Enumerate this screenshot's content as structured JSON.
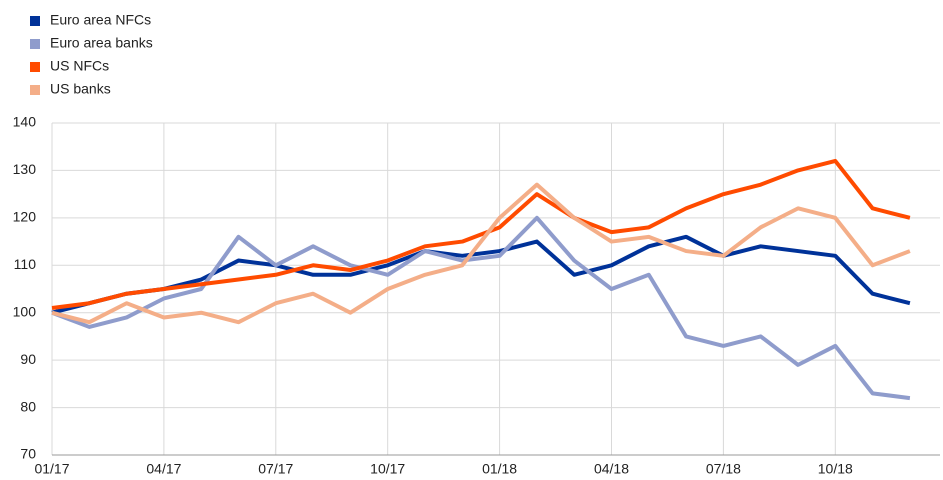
{
  "chart_data": {
    "type": "line",
    "categories": [
      "01/17",
      null,
      null,
      "04/17",
      null,
      null,
      "07/17",
      null,
      null,
      "10/17",
      null,
      null,
      "01/18",
      null,
      null,
      "04/18",
      null,
      null,
      "07/18",
      null,
      null,
      "10/18",
      null,
      null
    ],
    "series": [
      {
        "name": "Euro area NFCs",
        "color": "#003299",
        "values": [
          100,
          102,
          104,
          105,
          107,
          111,
          110,
          108,
          108,
          110,
          113,
          112,
          113,
          115,
          108,
          110,
          114,
          116,
          112,
          114,
          113,
          112,
          104,
          102
        ]
      },
      {
        "name": "Euro area banks",
        "color": "#8f9ccc",
        "values": [
          100,
          97,
          99,
          103,
          105,
          116,
          110,
          114,
          110,
          108,
          113,
          111,
          112,
          120,
          111,
          105,
          108,
          95,
          93,
          95,
          89,
          93,
          83,
          82
        ]
      },
      {
        "name": "US NFCs",
        "color": "#ff4b00",
        "values": [
          101,
          102,
          104,
          105,
          106,
          107,
          108,
          110,
          109,
          111,
          114,
          115,
          118,
          125,
          120,
          117,
          118,
          122,
          125,
          127,
          130,
          132,
          122,
          120
        ]
      },
      {
        "name": "US banks",
        "color": "#f4ae88",
        "values": [
          100,
          98,
          102,
          99,
          100,
          98,
          102,
          104,
          100,
          105,
          108,
          110,
          120,
          127,
          120,
          115,
          116,
          113,
          112,
          118,
          122,
          120,
          110,
          113
        ]
      }
    ],
    "ylim": [
      70,
      140
    ],
    "yticks": [
      70,
      80,
      90,
      100,
      110,
      120,
      130,
      140
    ],
    "grid": true,
    "legend": "top-left"
  }
}
